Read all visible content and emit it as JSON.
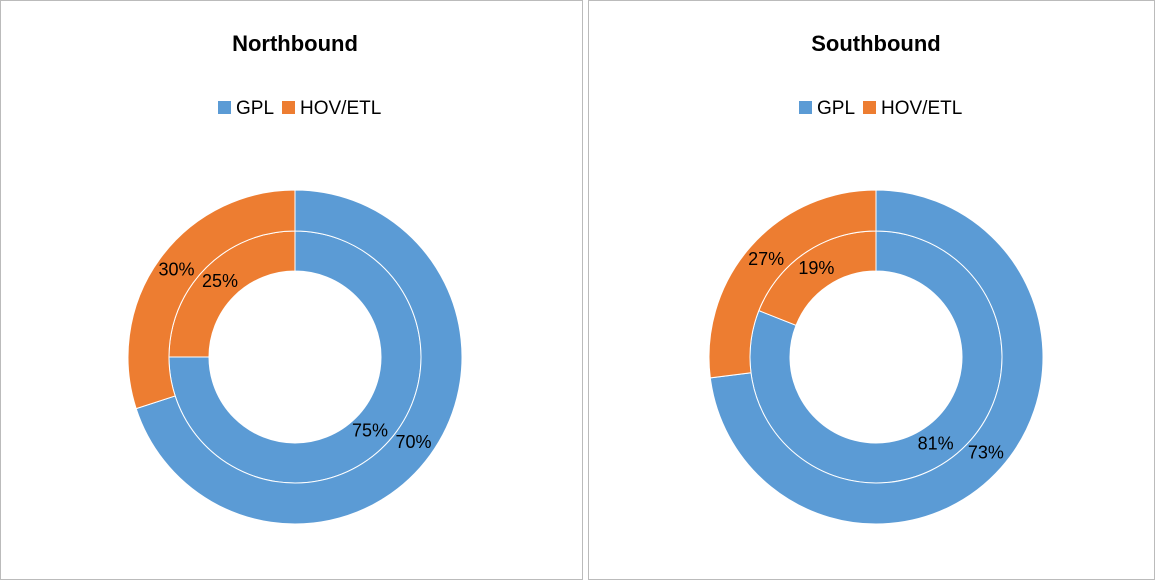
{
  "chart_data": [
    {
      "type": "donut",
      "title": "Northbound",
      "categories": [
        "GPL",
        "HOV/ETL"
      ],
      "colors": [
        "#5b9bd5",
        "#ed7d31"
      ],
      "series": [
        {
          "values": [
            75,
            25
          ],
          "value_labels": [
            "75%",
            "25%"
          ]
        },
        {
          "values": [
            70,
            30
          ],
          "value_labels": [
            "70%",
            "30%"
          ]
        }
      ]
    },
    {
      "type": "donut",
      "title": "Southbound",
      "categories": [
        "GPL",
        "HOV/ETL"
      ],
      "colors": [
        "#5b9bd5",
        "#ed7d31"
      ],
      "series": [
        {
          "values": [
            81,
            19
          ],
          "value_labels": [
            "81%",
            "19%"
          ]
        },
        {
          "values": [
            73,
            27
          ],
          "value_labels": [
            "73%",
            "27%"
          ]
        }
      ]
    }
  ]
}
